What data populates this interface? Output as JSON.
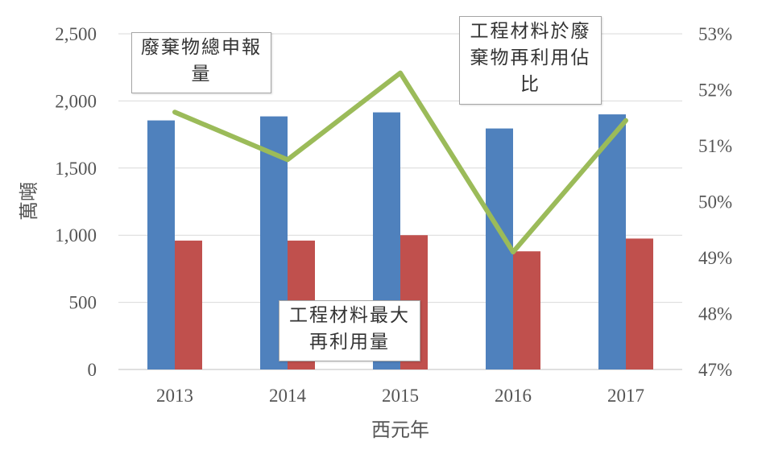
{
  "chart_data": {
    "type": "bar",
    "categories": [
      "2013",
      "2014",
      "2015",
      "2016",
      "2017"
    ],
    "xlabel": "西元年",
    "ylabel": "萬噸",
    "ylim": [
      0,
      2500
    ],
    "yticks": [
      "0",
      "500",
      "1,000",
      "1,500",
      "2,000",
      "2,500"
    ],
    "y2lim": [
      47,
      53
    ],
    "y2ticks": [
      "47%",
      "48%",
      "49%",
      "50%",
      "51%",
      "52%",
      "53%"
    ],
    "grid": true,
    "series": [
      {
        "name": "廢棄物總申報量",
        "kind": "bar",
        "axis": "left",
        "color": "#4f81bd",
        "values": [
          1855,
          1885,
          1915,
          1795,
          1900
        ]
      },
      {
        "name": "工程材料最大再利用量",
        "kind": "bar",
        "axis": "left",
        "color": "#c0504d",
        "values": [
          960,
          960,
          1000,
          880,
          975
        ]
      },
      {
        "name": "工程材料於廢棄物再利用佔比",
        "kind": "line",
        "axis": "right",
        "color": "#9bbb59",
        "values": [
          51.6,
          50.75,
          52.3,
          49.1,
          51.45
        ]
      }
    ]
  },
  "callouts": {
    "total": "廢棄物總申報量",
    "reuse_max": "工程材料最大再利用量",
    "ratio": "工程材料於廢棄物再利用佔比"
  }
}
